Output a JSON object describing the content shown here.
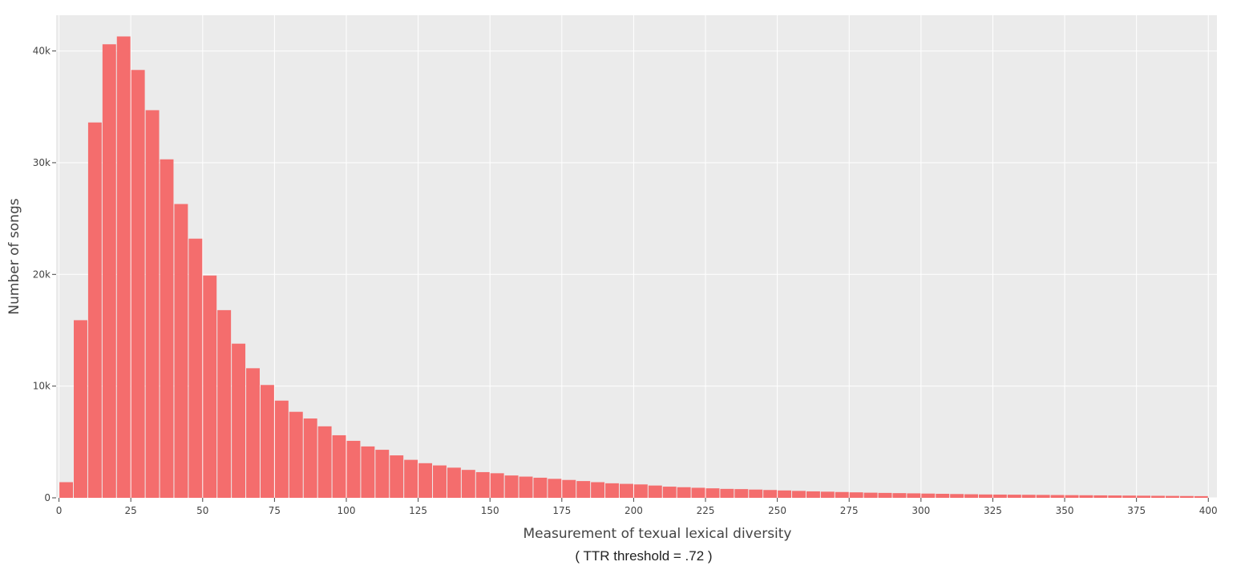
{
  "colors": {
    "bar": "#f46d6d",
    "plot_bg": "#ebebeb",
    "grid": "#ffffff",
    "tick_text": "#444444"
  },
  "chart_data": {
    "type": "bar",
    "title": "",
    "xlabel": "Measurement of texual lexical diversity",
    "xlabel_note": "( TTR threshold = .72 )",
    "ylabel": "Number of songs",
    "bin_width": 5,
    "xlim": [
      -1,
      403
    ],
    "ylim": [
      0,
      43200
    ],
    "x_ticks": [
      0,
      25,
      50,
      75,
      100,
      125,
      150,
      175,
      200,
      225,
      250,
      275,
      300,
      325,
      350,
      375,
      400
    ],
    "x_tick_labels": [
      "0",
      "25",
      "50",
      "75",
      "100",
      "125",
      "150",
      "175",
      "200",
      "225",
      "250",
      "275",
      "300",
      "325",
      "350",
      "375",
      "400"
    ],
    "y_ticks": [
      0,
      10000,
      20000,
      30000,
      40000
    ],
    "y_tick_labels": [
      "0",
      "10k",
      "20k",
      "30k",
      "40k"
    ],
    "grid": true,
    "legend": "none",
    "x": [
      2.5,
      7.5,
      12.5,
      17.5,
      22.5,
      27.5,
      32.5,
      37.5,
      42.5,
      47.5,
      52.5,
      57.5,
      62.5,
      67.5,
      72.5,
      77.5,
      82.5,
      87.5,
      92.5,
      97.5,
      102.5,
      107.5,
      112.5,
      117.5,
      122.5,
      127.5,
      132.5,
      137.5,
      142.5,
      147.5,
      152.5,
      157.5,
      162.5,
      167.5,
      172.5,
      177.5,
      182.5,
      187.5,
      192.5,
      197.5,
      202.5,
      207.5,
      212.5,
      217.5,
      222.5,
      227.5,
      232.5,
      237.5,
      242.5,
      247.5,
      252.5,
      257.5,
      262.5,
      267.5,
      272.5,
      277.5,
      282.5,
      287.5,
      292.5,
      297.5,
      302.5,
      307.5,
      312.5,
      317.5,
      322.5,
      327.5,
      332.5,
      337.5,
      342.5,
      347.5,
      352.5,
      357.5,
      362.5,
      367.5,
      372.5,
      377.5,
      382.5,
      387.5,
      392.5,
      397.5
    ],
    "values": [
      1400,
      15900,
      33600,
      40600,
      41300,
      38300,
      34700,
      30300,
      26300,
      23200,
      19900,
      16800,
      13800,
      11600,
      10100,
      8700,
      7700,
      7100,
      6400,
      5600,
      5100,
      4600,
      4300,
      3800,
      3400,
      3100,
      2900,
      2700,
      2500,
      2300,
      2200,
      2000,
      1900,
      1800,
      1700,
      1600,
      1500,
      1400,
      1300,
      1250,
      1200,
      1100,
      1000,
      950,
      900,
      850,
      800,
      780,
      740,
      700,
      660,
      620,
      580,
      550,
      520,
      490,
      460,
      440,
      420,
      400,
      380,
      360,
      340,
      320,
      300,
      290,
      280,
      270,
      260,
      250,
      240,
      230,
      220,
      210,
      200,
      190,
      180,
      170,
      160,
      150
    ]
  }
}
